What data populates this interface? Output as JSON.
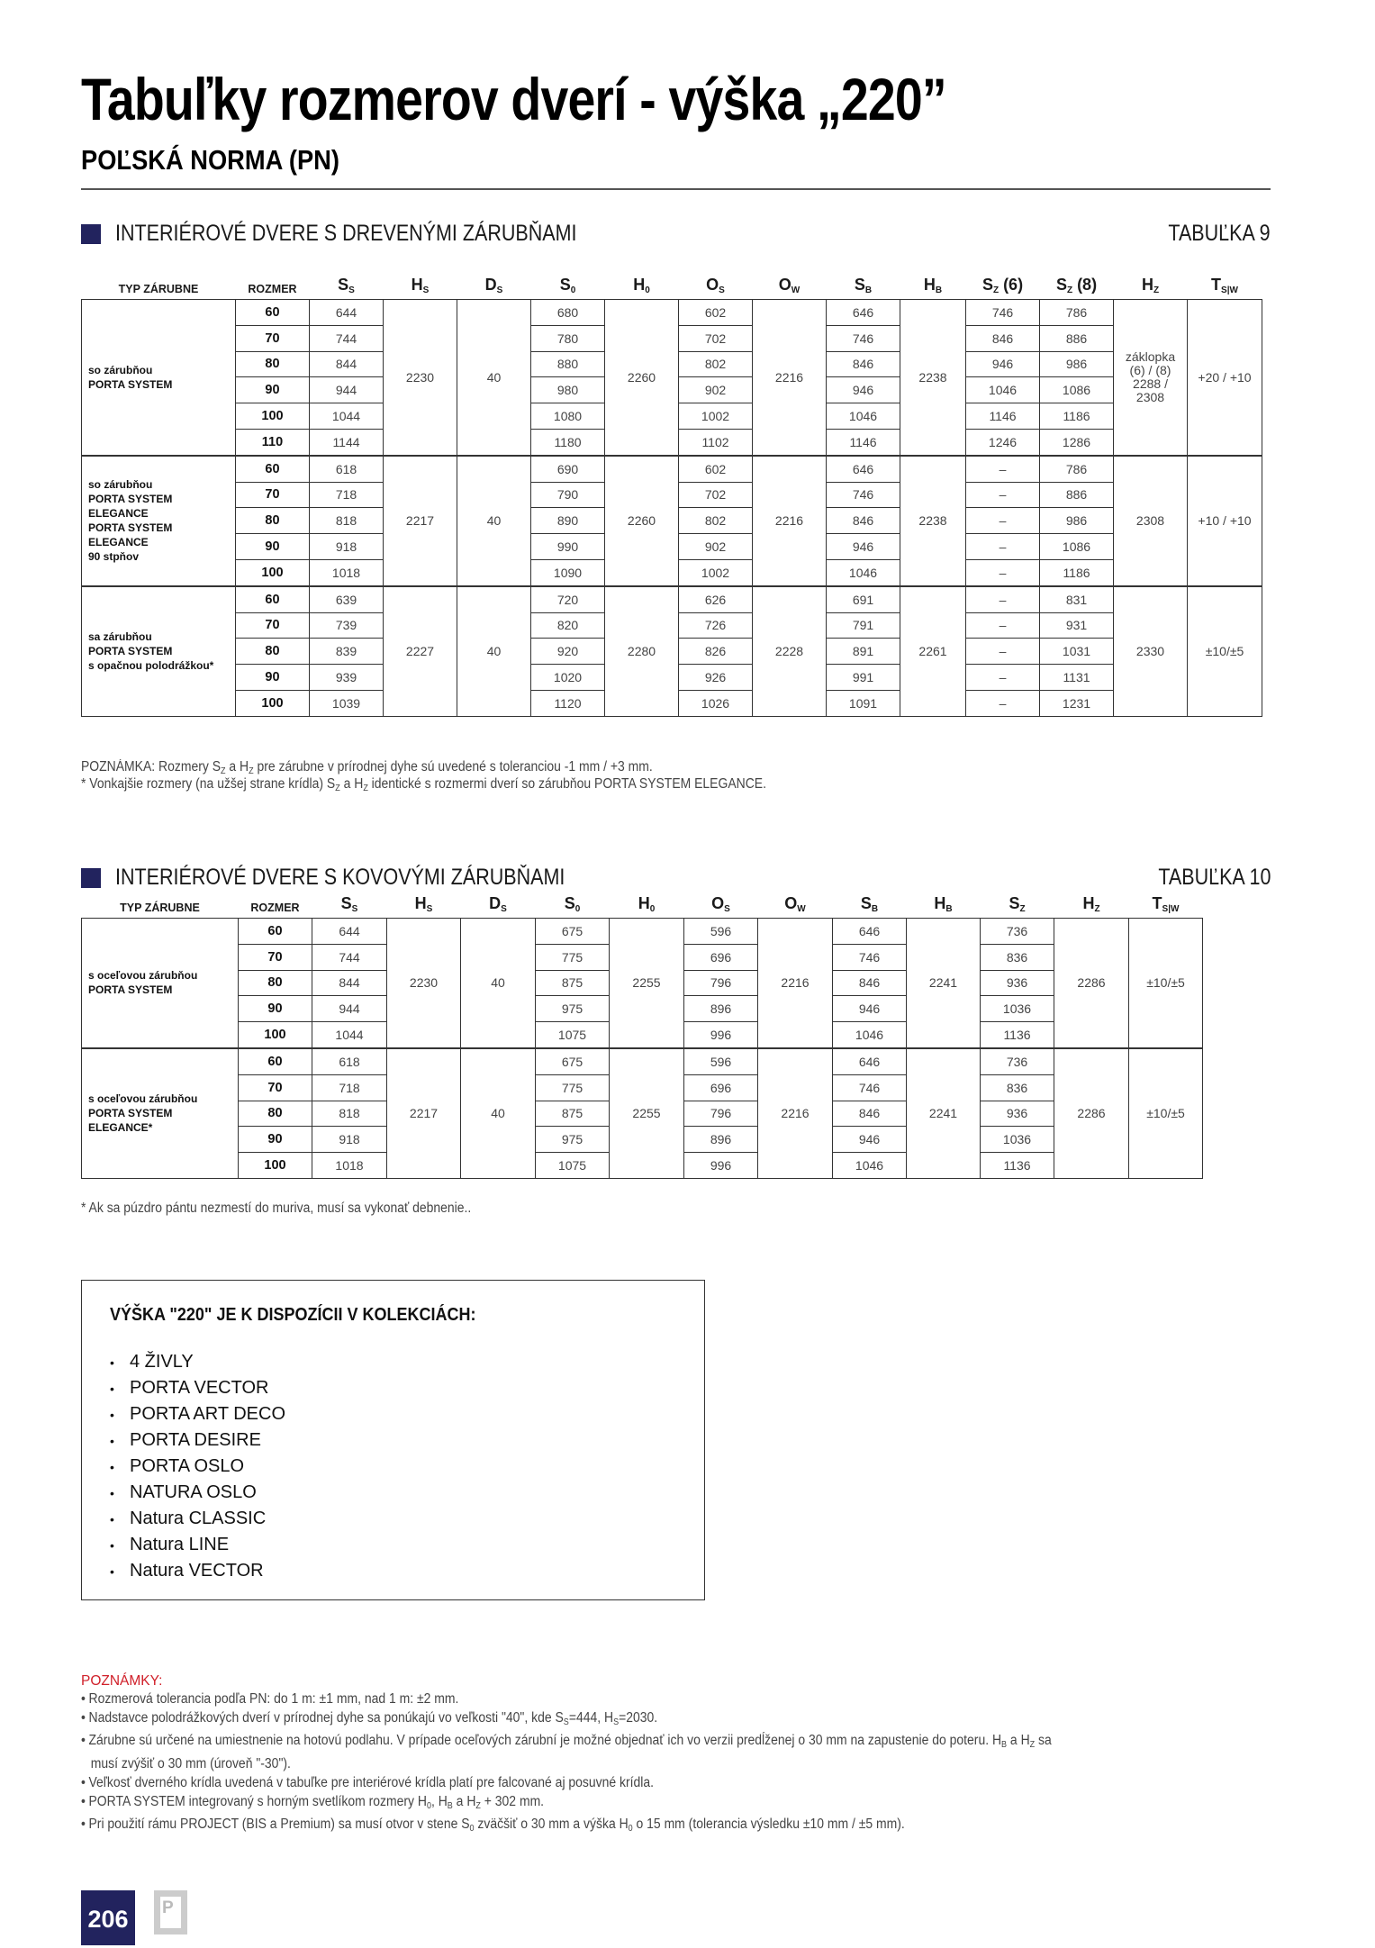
{
  "header": {
    "title": "Tabuľky rozmerov dverí - výška „220”",
    "subtitle": "POĽSKÁ NORMA (PN)"
  },
  "colors": {
    "accent": "#22235e",
    "notes_heading": "#d0202a"
  },
  "table9": {
    "section_title": "INTERIÉROVÉ DVERE S DREVENÝMI ZÁRUBŇAMI",
    "table_label": "TABUĽKA 9",
    "columns": [
      {
        "main": "TYP ZÁRUBNE",
        "sub": "",
        "suffix": ""
      },
      {
        "main": "ROZMER",
        "sub": "",
        "suffix": ""
      },
      {
        "main": "S",
        "sub": "S",
        "suffix": ""
      },
      {
        "main": "H",
        "sub": "S",
        "suffix": ""
      },
      {
        "main": "D",
        "sub": "S",
        "suffix": ""
      },
      {
        "main": "S",
        "sub": "0",
        "suffix": ""
      },
      {
        "main": "H",
        "sub": "0",
        "suffix": ""
      },
      {
        "main": "O",
        "sub": "S",
        "suffix": ""
      },
      {
        "main": "O",
        "sub": "W",
        "suffix": ""
      },
      {
        "main": "S",
        "sub": "B",
        "suffix": ""
      },
      {
        "main": "H",
        "sub": "B",
        "suffix": ""
      },
      {
        "main": "S",
        "sub": "Z",
        "suffix": " (6)"
      },
      {
        "main": "S",
        "sub": "Z",
        "suffix": " (8)"
      },
      {
        "main": "H",
        "sub": "Z",
        "suffix": ""
      },
      {
        "main": "T",
        "sub": "S|W",
        "suffix": ""
      }
    ],
    "layout": [
      "typ",
      "rozmer",
      "r0",
      "m:hs",
      "m:ds",
      "r1",
      "m:h0",
      "r2",
      "m:ow",
      "r3",
      "m:hb",
      "r4",
      "r5",
      "m:hz",
      "m:tsw"
    ],
    "groups": [
      {
        "frame": [
          "so zárubňou",
          "PORTA SYSTEM"
        ],
        "hs": "2230",
        "ds": "40",
        "h0": "2260",
        "ow": "2216",
        "hb": "2238",
        "hz": "záklopka (6) / (8) 2288 / 2308",
        "tsw": "+20 / +10",
        "rows": [
          {
            "rozmer": "60",
            "vals": [
              "644",
              "680",
              "602",
              "646",
              "746",
              "786"
            ]
          },
          {
            "rozmer": "70",
            "vals": [
              "744",
              "780",
              "702",
              "746",
              "846",
              "886"
            ]
          },
          {
            "rozmer": "80",
            "vals": [
              "844",
              "880",
              "802",
              "846",
              "946",
              "986"
            ]
          },
          {
            "rozmer": "90",
            "vals": [
              "944",
              "980",
              "902",
              "946",
              "1046",
              "1086"
            ]
          },
          {
            "rozmer": "100",
            "vals": [
              "1044",
              "1080",
              "1002",
              "1046",
              "1146",
              "1186"
            ]
          },
          {
            "rozmer": "110",
            "vals": [
              "1144",
              "1180",
              "1102",
              "1146",
              "1246",
              "1286"
            ]
          }
        ]
      },
      {
        "frame": [
          "so zárubňou",
          "PORTA SYSTEM ELEGANCE",
          "PORTA SYSTEM ELEGANCE",
          "90 stpňov"
        ],
        "hs": "2217",
        "ds": "40",
        "h0": "2260",
        "ow": "2216",
        "hb": "2238",
        "hz": "2308",
        "tsw": "+10 / +10",
        "rows": [
          {
            "rozmer": "60",
            "vals": [
              "618",
              "690",
              "602",
              "646",
              "–",
              "786"
            ]
          },
          {
            "rozmer": "70",
            "vals": [
              "718",
              "790",
              "702",
              "746",
              "–",
              "886"
            ]
          },
          {
            "rozmer": "80",
            "vals": [
              "818",
              "890",
              "802",
              "846",
              "–",
              "986"
            ]
          },
          {
            "rozmer": "90",
            "vals": [
              "918",
              "990",
              "902",
              "946",
              "–",
              "1086"
            ]
          },
          {
            "rozmer": "100",
            "vals": [
              "1018",
              "1090",
              "1002",
              "1046",
              "–",
              "1186"
            ]
          }
        ]
      },
      {
        "frame": [
          "sa zárubňou",
          "PORTA SYSTEM",
          "s opačnou polodrážkou*"
        ],
        "hs": "2227",
        "ds": "40",
        "h0": "2280",
        "ow": "2228",
        "hb": "2261",
        "hz": "2330",
        "tsw": "±10/±5",
        "rows": [
          {
            "rozmer": "60",
            "vals": [
              "639",
              "720",
              "626",
              "691",
              "–",
              "831"
            ]
          },
          {
            "rozmer": "70",
            "vals": [
              "739",
              "820",
              "726",
              "791",
              "–",
              "931"
            ]
          },
          {
            "rozmer": "80",
            "vals": [
              "839",
              "920",
              "826",
              "891",
              "–",
              "1031"
            ]
          },
          {
            "rozmer": "90",
            "vals": [
              "939",
              "1020",
              "926",
              "991",
              "–",
              "1131"
            ]
          },
          {
            "rozmer": "100",
            "vals": [
              "1039",
              "1120",
              "1026",
              "1091",
              "–",
              "1231"
            ]
          }
        ]
      }
    ],
    "notes": [
      [
        {
          "t": "POZNÁMKA: Rozmery S"
        },
        {
          "sub": "Z"
        },
        {
          "t": " a H"
        },
        {
          "sub": "Z"
        },
        {
          "t": " pre zárubne v prírodnej dyhe sú uvedené s toleranciou -1 mm / +3 mm."
        }
      ],
      [
        {
          "t": "* Vonkajšie rozmery (na užšej strane krídla) S"
        },
        {
          "sub": "Z"
        },
        {
          "t": " a H"
        },
        {
          "sub": "Z"
        },
        {
          "t": "  identické s rozmermi dverí so zárubňou PORTA SYSTEM ELEGANCE."
        }
      ]
    ]
  },
  "table10": {
    "section_title": "INTERIÉROVÉ DVERE S KOVOVÝMI ZÁRUBŇAMI",
    "table_label": "TABUĽKA 10",
    "columns": [
      {
        "main": "TYP ZÁRUBNE",
        "sub": "",
        "suffix": ""
      },
      {
        "main": "ROZMER",
        "sub": "",
        "suffix": ""
      },
      {
        "main": "S",
        "sub": "S",
        "suffix": ""
      },
      {
        "main": "H",
        "sub": "S",
        "suffix": ""
      },
      {
        "main": "D",
        "sub": "S",
        "suffix": ""
      },
      {
        "main": "S",
        "sub": "0",
        "suffix": ""
      },
      {
        "main": "H",
        "sub": "0",
        "suffix": ""
      },
      {
        "main": "O",
        "sub": "S",
        "suffix": ""
      },
      {
        "main": "O",
        "sub": "W",
        "suffix": ""
      },
      {
        "main": "S",
        "sub": "B",
        "suffix": ""
      },
      {
        "main": "H",
        "sub": "B",
        "suffix": ""
      },
      {
        "main": "S",
        "sub": "Z",
        "suffix": ""
      },
      {
        "main": "H",
        "sub": "Z",
        "suffix": ""
      },
      {
        "main": "T",
        "sub": "S|W",
        "suffix": ""
      }
    ],
    "layout": [
      "typ",
      "rozmer",
      "r0",
      "m:hs",
      "m:ds",
      "r1",
      "m:h0",
      "r2",
      "m:ow",
      "r3",
      "m:hb",
      "r4",
      "m:hz",
      "m:tsw"
    ],
    "groups": [
      {
        "frame": [
          "s oceľovou zárubňou",
          "PORTA SYSTEM"
        ],
        "hs": "2230",
        "ds": "40",
        "h0": "2255",
        "ow": "2216",
        "hb": "2241",
        "hz": "2286",
        "tsw": "±10/±5",
        "rows": [
          {
            "rozmer": "60",
            "vals": [
              "644",
              "675",
              "596",
              "646",
              "736"
            ]
          },
          {
            "rozmer": "70",
            "vals": [
              "744",
              "775",
              "696",
              "746",
              "836"
            ]
          },
          {
            "rozmer": "80",
            "vals": [
              "844",
              "875",
              "796",
              "846",
              "936"
            ]
          },
          {
            "rozmer": "90",
            "vals": [
              "944",
              "975",
              "896",
              "946",
              "1036"
            ]
          },
          {
            "rozmer": "100",
            "vals": [
              "1044",
              "1075",
              "996",
              "1046",
              "1136"
            ]
          }
        ]
      },
      {
        "frame": [
          "s oceľovou zárubňou",
          "PORTA SYSTEM",
          "ELEGANCE*"
        ],
        "hs": "2217",
        "ds": "40",
        "h0": "2255",
        "ow": "2216",
        "hb": "2241",
        "hz": "2286",
        "tsw": "±10/±5",
        "rows": [
          {
            "rozmer": "60",
            "vals": [
              "618",
              "675",
              "596",
              "646",
              "736"
            ]
          },
          {
            "rozmer": "70",
            "vals": [
              "718",
              "775",
              "696",
              "746",
              "836"
            ]
          },
          {
            "rozmer": "80",
            "vals": [
              "818",
              "875",
              "796",
              "846",
              "936"
            ]
          },
          {
            "rozmer": "90",
            "vals": [
              "918",
              "975",
              "896",
              "946",
              "1036"
            ]
          },
          {
            "rozmer": "100",
            "vals": [
              "1018",
              "1075",
              "996",
              "1046",
              "1136"
            ]
          }
        ]
      }
    ],
    "notes": [
      [
        {
          "t": "* Ak sa púzdro pántu nezmestí do muriva, musí sa vykonať debnenie.."
        }
      ]
    ]
  },
  "collections_box": {
    "heading": "VÝŠKA \"220\" JE K DISPOZÍCII V KOLEKCIÁCH:",
    "bullet": "•",
    "items": [
      "4 ŽIVLY",
      "PORTA VECTOR",
      "PORTA ART DECO",
      "PORTA DESIRE",
      "PORTA OSLO",
      "NATURA OSLO",
      "Natura CLASSIC",
      "Natura LINE",
      "Natura VECTOR"
    ]
  },
  "notes_section": {
    "heading": "POZNÁMKY:",
    "bullet": "•",
    "items": [
      [
        [
          {
            "t": "Rozmerová tolerancia podľa PN: do 1 m: ±1 mm, nad 1 m: ±2 mm."
          }
        ]
      ],
      [
        [
          {
            "t": "Nadstavce polodrážkových dverí v prírodnej dyhe sa ponúkajú vo veľkosti \"40\", kde S"
          },
          {
            "sub": "S"
          },
          {
            "t": "=444, H"
          },
          {
            "sub": "S"
          },
          {
            "t": "=2030."
          }
        ]
      ],
      [
        [
          {
            "t": "Zárubne sú určené na umiestnenie na hotovú podlahu. V prípade oceľových zárubní je možné objednať ich vo verzii predĺženej o 30 mm na zapustenie do poteru. H"
          },
          {
            "sub": "B"
          },
          {
            "t": " a H"
          },
          {
            "sub": "Z"
          },
          {
            "t": " sa"
          }
        ],
        [
          {
            "t": "musí zvýšiť o 30 mm (úroveň \"-30\")."
          }
        ]
      ],
      [
        [
          {
            "t": "Veľkosť dverného krídla uvedená v tabuľke pre interiérové krídla platí pre falcované aj posuvné krídla."
          }
        ]
      ],
      [
        [
          {
            "t": "PORTA SYSTEM integrovaný s horným svetlíkom rozmery H"
          },
          {
            "sub": "0"
          },
          {
            "t": ", H"
          },
          {
            "sub": "B"
          },
          {
            "t": " a H"
          },
          {
            "sub": "Z"
          },
          {
            "t": " + 302 mm."
          }
        ]
      ],
      [
        [
          {
            "t": "Pri použití rámu PROJECT (BIS a Premium) sa musí otvor v stene S"
          },
          {
            "sub": "0"
          },
          {
            "t": " zväčšiť o 30 mm a výška H"
          },
          {
            "sub": "0"
          },
          {
            "t": " o 15 mm (tolerancia výsledku ±10 mm / ±5 mm)."
          }
        ]
      ]
    ]
  },
  "footer": {
    "page_number": "206",
    "logo_letter": "P"
  }
}
